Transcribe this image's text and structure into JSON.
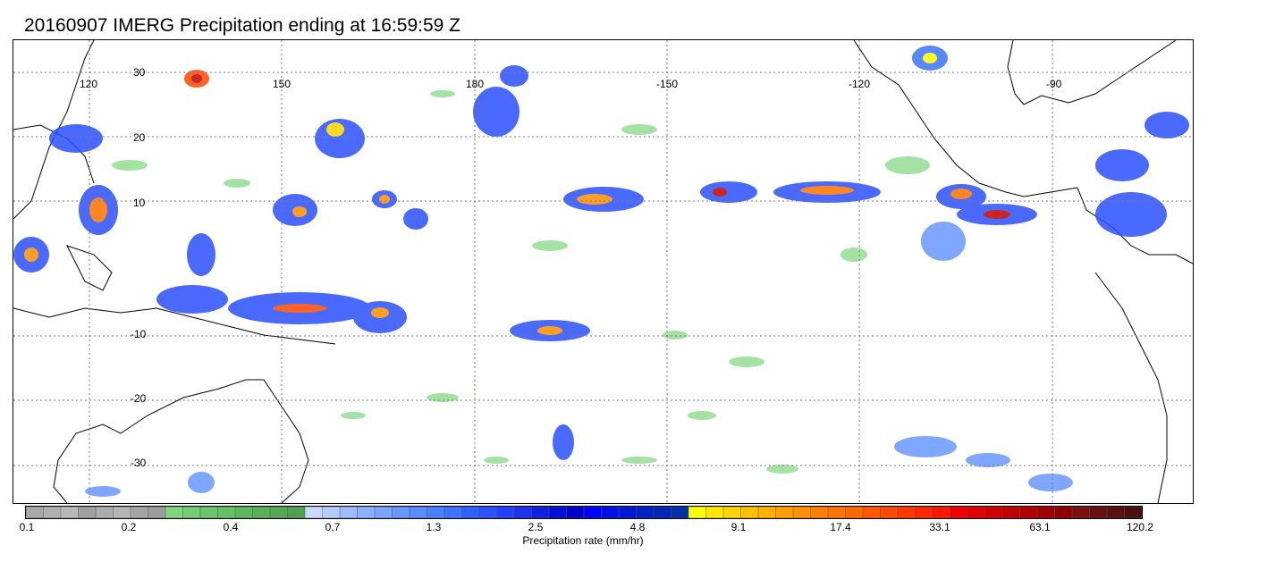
{
  "title": "20160907 IMERG Precipitation ending at 16:59:59 Z",
  "map": {
    "lon_labels": [
      "120",
      "150",
      "180",
      "-150",
      "-120",
      "-90"
    ],
    "lat_labels": [
      "30",
      "20",
      "10",
      "-10",
      "-20",
      "-30"
    ],
    "gridlines": true
  },
  "colorbar": {
    "title": "Precipitation rate (mm/hr)",
    "tick_labels": [
      "0.1",
      "0.2",
      "0.4",
      "0.7",
      "1.3",
      "2.5",
      "4.8",
      "9.1",
      "17.4",
      "33.1",
      "63.1",
      "120.2"
    ],
    "colors": [
      "#a8a8a8",
      "#b0b0b0",
      "#b8b8b8",
      "#a0a0a0",
      "#acacac",
      "#b4b4b4",
      "#a4a4a4",
      "#9c9c9c",
      "#7ed67e",
      "#74cc74",
      "#6ac46a",
      "#64c064",
      "#5cb85c",
      "#58b058",
      "#54a854",
      "#4fa04f",
      "#c8d8ff",
      "#b4ccff",
      "#a0bcff",
      "#8cb0ff",
      "#7aa4ff",
      "#6898ff",
      "#588cff",
      "#4880ff",
      "#3c74ff",
      "#3060ff",
      "#2a50ff",
      "#2440ff",
      "#1e30f0",
      "#1020e0",
      "#0010d8",
      "#0000c8",
      "#0000ff",
      "#0010e8",
      "#0018d8",
      "#0020c8",
      "#0028b8",
      "#0030a8",
      "#ffff00",
      "#ffe800",
      "#ffd400",
      "#ffc000",
      "#ffb000",
      "#ffa000",
      "#ff9000",
      "#ff8000",
      "#ff7400",
      "#ff6800",
      "#ff5800",
      "#ff4800",
      "#ff3800",
      "#ff2800",
      "#ff1800",
      "#f00000",
      "#e00000",
      "#d00000",
      "#c00000",
      "#b00000",
      "#a00000",
      "#900000",
      "#7a1010",
      "#6a1010",
      "#5a1010",
      "#4a1010"
    ]
  }
}
